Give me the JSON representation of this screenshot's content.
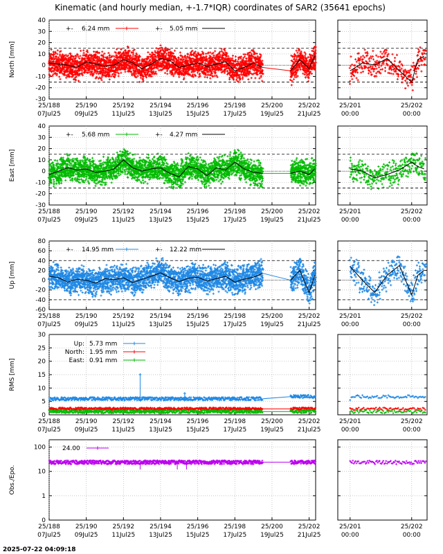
{
  "title": "Kinematic (and hourly median, +-1.7*IQR) coordinates of SAR2 (35641 epochs)",
  "timestamp": "2025-07-22 04:09:18",
  "colors": {
    "north": "#ff0000",
    "east": "#00bb00",
    "up": "#1e88e5",
    "obs": "#bb00ee",
    "median": "#000000"
  },
  "x_axis_main": {
    "ticks": [
      {
        "doy": "25/188",
        "date": "07Jul25"
      },
      {
        "doy": "25/190",
        "date": "09Jul25"
      },
      {
        "doy": "25/192",
        "date": "11Jul25"
      },
      {
        "doy": "25/194",
        "date": "13Jul25"
      },
      {
        "doy": "25/196",
        "date": "15Jul25"
      },
      {
        "doy": "25/198",
        "date": "17Jul25"
      },
      {
        "doy": "25/200",
        "date": "19Jul25"
      },
      {
        "doy": "25/202",
        "date": "21Jul25"
      }
    ]
  },
  "x_axis_zoom": {
    "ticks": [
      {
        "doy": "25/201",
        "date": "00:00"
      },
      {
        "doy": "25/202",
        "date": "00:00"
      }
    ]
  },
  "chart_data": [
    {
      "type": "scatter",
      "id": "north",
      "ylabel": "North [mm]",
      "ylim": [
        -30,
        40
      ],
      "yticks": [
        -30,
        -20,
        -10,
        0,
        10,
        20,
        30,
        40
      ],
      "dashed_levels": [
        15,
        -15
      ],
      "scatter_amplitude": 9,
      "legend": [
        "6.24 mm",
        "5.05 mm"
      ],
      "x_days": [
        188,
        188.5,
        189,
        189.5,
        190,
        190.5,
        191,
        191.5,
        192,
        192.5,
        193,
        193.5,
        194,
        194.5,
        195,
        195.5,
        196,
        196.5,
        197,
        197.5,
        198,
        198.5,
        199,
        199.5,
        201,
        201.5,
        202,
        202.3
      ],
      "median": [
        2,
        1,
        0,
        -2,
        3,
        1,
        -1,
        0,
        5,
        2,
        -3,
        1,
        6,
        4,
        -2,
        0,
        2,
        -1,
        1,
        3,
        -5,
        -2,
        2,
        -2,
        -5,
        5,
        -3,
        8
      ],
      "zoom_x": [
        201.0,
        201.2,
        201.4,
        201.6,
        201.8,
        202.0,
        202.1,
        202.2
      ],
      "zoom_median": [
        -5,
        2,
        0,
        6,
        -5,
        -15,
        5,
        8
      ]
    },
    {
      "type": "scatter",
      "id": "east",
      "ylabel": "East [mm]",
      "ylim": [
        -30,
        40
      ],
      "yticks": [
        -30,
        -20,
        -10,
        0,
        10,
        20,
        30,
        40
      ],
      "dashed_levels": [
        15,
        -15
      ],
      "scatter_amplitude": 9,
      "legend": [
        "5.68 mm",
        "4.27 mm"
      ],
      "x_days": [
        188,
        188.5,
        189,
        189.5,
        190,
        190.5,
        191,
        191.5,
        192,
        192.5,
        193,
        193.5,
        194,
        194.5,
        195,
        195.5,
        196,
        196.5,
        197,
        197.5,
        198,
        198.5,
        199,
        199.5,
        201,
        201.5,
        202,
        202.3
      ],
      "median": [
        -3,
        0,
        3,
        1,
        2,
        -1,
        0,
        2,
        10,
        3,
        0,
        2,
        3,
        -2,
        -5,
        4,
        2,
        -4,
        3,
        1,
        8,
        2,
        -1,
        -2,
        -2,
        0,
        -3,
        2
      ],
      "zoom_x": [
        201.0,
        201.2,
        201.4,
        201.6,
        201.8,
        202.0,
        202.1,
        202.2
      ],
      "zoom_median": [
        2,
        0,
        -6,
        -3,
        1,
        8,
        4,
        2
      ]
    },
    {
      "type": "scatter",
      "id": "up",
      "ylabel": "Up [mm]",
      "ylim": [
        -60,
        80
      ],
      "yticks": [
        -60,
        -40,
        -20,
        0,
        20,
        40,
        60,
        80
      ],
      "dashed_levels": [
        40,
        -40
      ],
      "scatter_amplitude": 22,
      "legend": [
        "14.95 mm",
        "12.22 mm"
      ],
      "x_days": [
        188,
        188.5,
        189,
        189.5,
        190,
        190.5,
        191,
        191.5,
        192,
        192.5,
        193,
        193.5,
        194,
        194.5,
        195,
        195.5,
        196,
        196.5,
        197,
        197.5,
        198,
        198.5,
        199,
        199.5,
        201,
        201.5,
        202,
        202.3
      ],
      "median": [
        8,
        5,
        -4,
        2,
        0,
        -6,
        3,
        1,
        5,
        -5,
        2,
        8,
        15,
        5,
        -3,
        4,
        6,
        -2,
        3,
        8,
        -4,
        2,
        6,
        14,
        0,
        20,
        -25,
        10
      ],
      "zoom_x": [
        201.0,
        201.2,
        201.4,
        201.6,
        201.8,
        202.0,
        202.1,
        202.2
      ],
      "zoom_median": [
        28,
        0,
        -25,
        10,
        30,
        -30,
        10,
        20
      ]
    },
    {
      "type": "line",
      "id": "rms",
      "ylabel": "RMS [mm]",
      "ylim": [
        0,
        30
      ],
      "yticks": [
        0,
        5,
        10,
        15,
        20,
        25,
        30
      ],
      "series": [
        {
          "name": "Up:",
          "value_label": "5.73 mm",
          "color_key": "up",
          "level": 6,
          "jitter": 0.6
        },
        {
          "name": "North:",
          "value_label": "1.95 mm",
          "color_key": "north",
          "level": 2.2,
          "jitter": 0.5
        },
        {
          "name": "East:",
          "value_label": "0.91 mm",
          "color_key": "east",
          "level": 1.2,
          "jitter": 0.6
        }
      ],
      "outliers": [
        {
          "day": 192.9,
          "value": 15
        },
        {
          "day": 195.3,
          "value": 8
        }
      ]
    },
    {
      "type": "line",
      "id": "obs",
      "ylabel": "Obs./Epo.",
      "scale": "log",
      "ylim": [
        0.1,
        200
      ],
      "yticks": [
        0.1,
        1,
        10,
        100
      ],
      "legend": [
        "24.00"
      ],
      "level": 24
    }
  ]
}
